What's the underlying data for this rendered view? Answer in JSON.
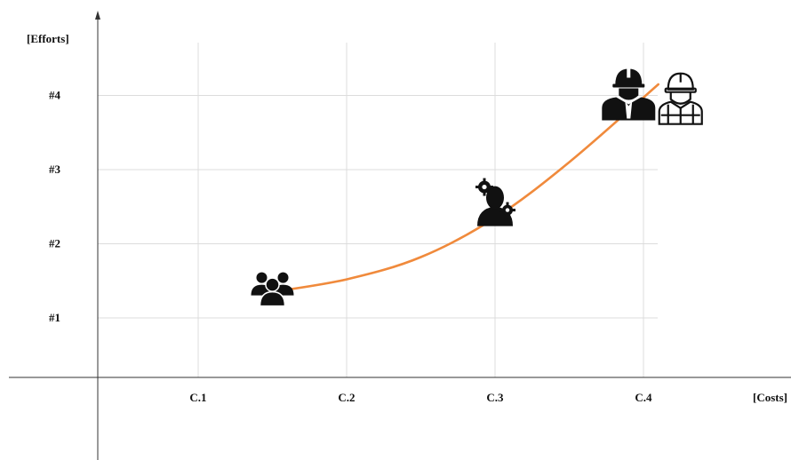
{
  "chart_data": {
    "type": "line",
    "xlabel": "[Costs]",
    "ylabel": "[Efforts]",
    "x_categories": [
      "C.1",
      "C.2",
      "C.3",
      "C.4"
    ],
    "y_categories": [
      "#1",
      "#2",
      "#3",
      "#4"
    ],
    "series": [
      {
        "color": "#f08a3c",
        "points": [
          {
            "x": 1.5,
            "y": 1.35
          },
          {
            "x": 2.0,
            "y": 1.52
          },
          {
            "x": 2.5,
            "y": 1.82
          },
          {
            "x": 3.0,
            "y": 2.35
          },
          {
            "x": 3.5,
            "y": 3.1
          },
          {
            "x": 4.1,
            "y": 4.15
          }
        ]
      }
    ],
    "markers": [
      {
        "icon": "team-group-icon",
        "x": 1.5,
        "y": 1.4
      },
      {
        "icon": "engineer-gears-icon",
        "x": 3.0,
        "y": 2.55
      },
      {
        "icon": "construction-worker-icon",
        "x": 3.9,
        "y": 4.0
      },
      {
        "icon": "construction-worker-outline-icon",
        "x": 4.25,
        "y": 3.95
      }
    ],
    "grid": true,
    "xlim": [
      0,
      4.7
    ],
    "ylim": [
      -0.8,
      4.9
    ]
  }
}
